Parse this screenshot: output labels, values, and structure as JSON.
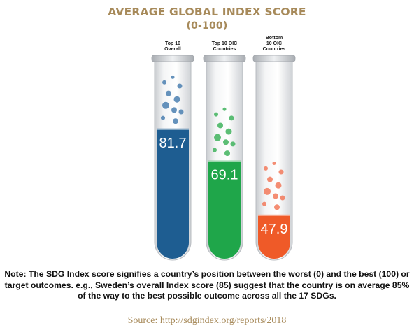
{
  "title": "AVERAGE GLOBAL INDEX SCORE",
  "subtitle": "(0-100)",
  "chart_data": {
    "type": "bar",
    "title": "AVERAGE GLOBAL INDEX SCORE",
    "subtitle": "(0-100)",
    "ylim": [
      0,
      100
    ],
    "categories": [
      [
        "Top 10",
        "Overall"
      ],
      [
        "Top 10 OIC",
        "Countries"
      ],
      [
        "Bottom",
        "10 OIC",
        "Countries"
      ]
    ],
    "series": [
      {
        "values": [
          81.7,
          69.1,
          47.9
        ],
        "labels": [
          "81.7",
          "69.1",
          "47.9"
        ]
      }
    ],
    "colors": [
      "#1e5d91",
      "#1fa64a",
      "#ef5a28"
    ],
    "bubble_colors": [
      "#4a7fb0",
      "#3fb35d",
      "#f2795a"
    ]
  },
  "note": "Note: The SDG Index score signifies a country’s position between the worst (0) and the best (100) or target outcomes. e.g., Sweden’s overall Index score (85) suggest that the country is on average 85% of the way to the best possible outcome across all the 17 SDGs.",
  "source": "Source: http://sdgindex.org/reports/2018"
}
